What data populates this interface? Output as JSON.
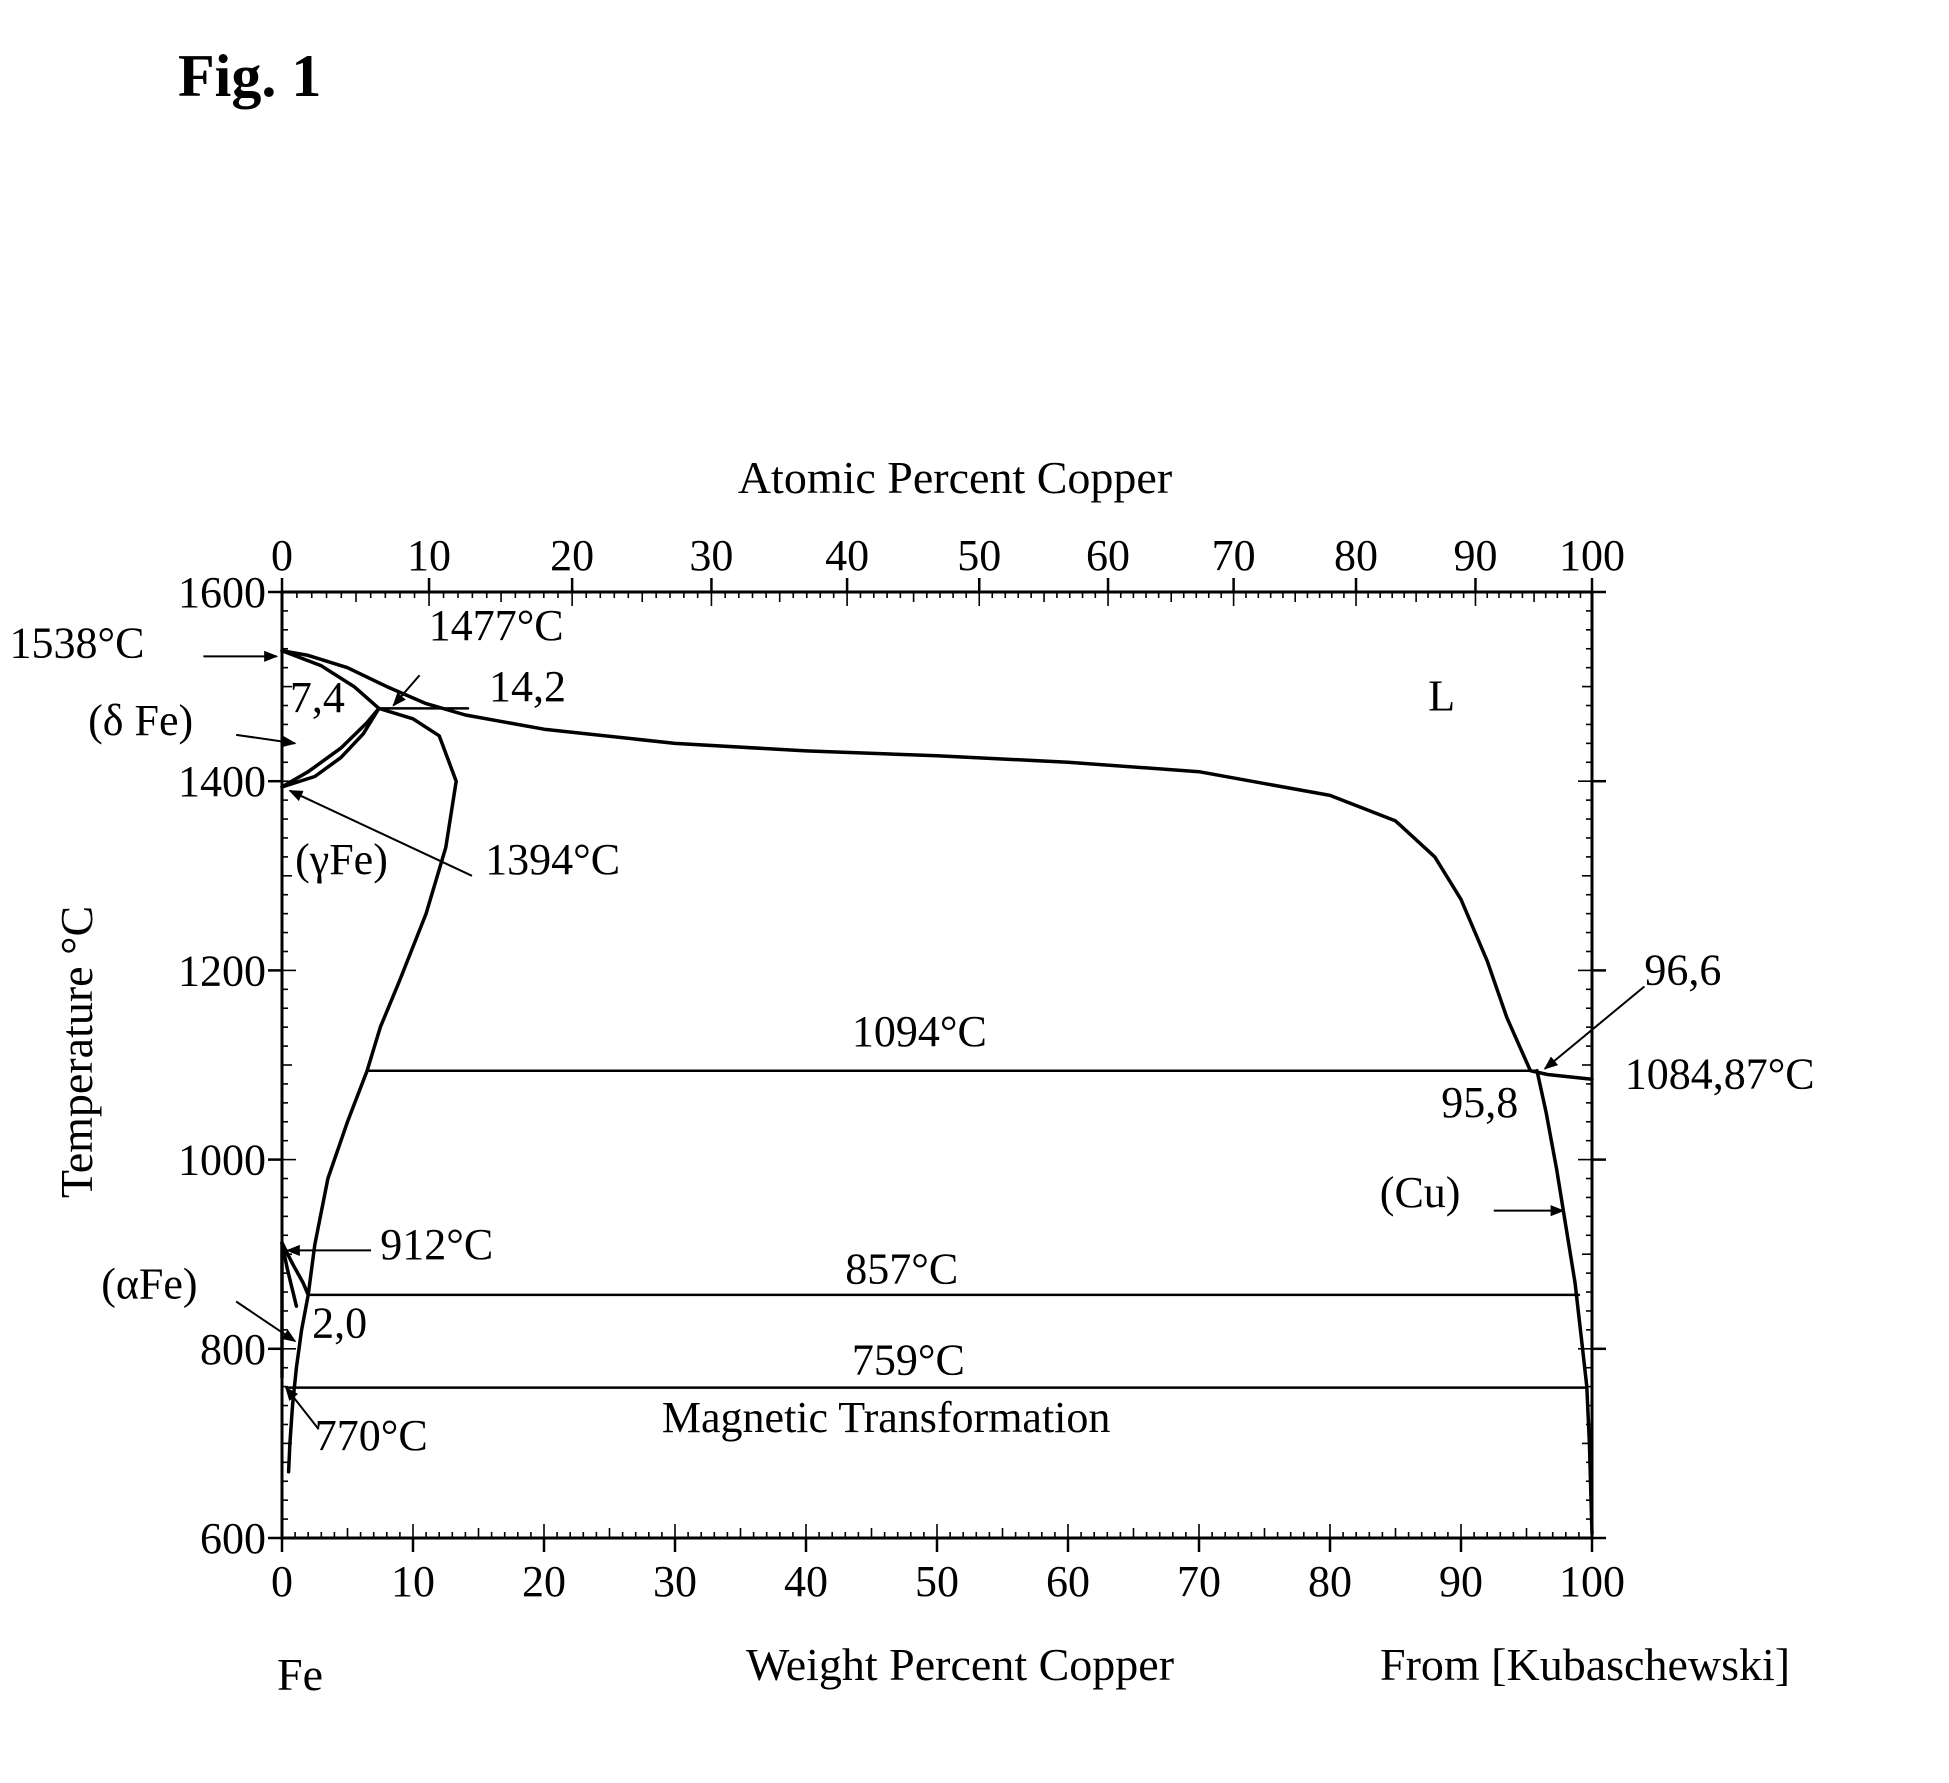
{
  "figure": {
    "title": "Fig. 1",
    "source": "From [Kubaschewski]",
    "element_label": "Fe"
  },
  "chart_data": {
    "type": "line",
    "title": "Fig. 1",
    "xlabel": "Weight Percent Copper",
    "x2label": "Atomic Percent Copper",
    "ylabel": "Temperature °C",
    "xlim": [
      0,
      100
    ],
    "ylim": [
      600,
      1600
    ],
    "x_ticks": [
      "0",
      "10",
      "20",
      "30",
      "40",
      "50",
      "60",
      "70",
      "80",
      "90",
      "100"
    ],
    "x2_ticks": [
      "0",
      "10",
      "20",
      "30",
      "40",
      "50",
      "60",
      "70",
      "80",
      "90",
      "100"
    ],
    "y_ticks": [
      "600",
      "800",
      "1000",
      "1200",
      "1400",
      "1600"
    ],
    "grid": false,
    "series": [
      {
        "id": "liquidus",
        "points": [
          [
            0,
            1538
          ],
          [
            2,
            1533
          ],
          [
            5,
            1520
          ],
          [
            8,
            1500
          ],
          [
            11,
            1482
          ],
          [
            14,
            1470
          ],
          [
            20,
            1455
          ],
          [
            30,
            1440
          ],
          [
            40,
            1432
          ],
          [
            50,
            1427
          ],
          [
            60,
            1420
          ],
          [
            70,
            1410
          ],
          [
            80,
            1385
          ],
          [
            85,
            1358
          ],
          [
            88,
            1320
          ],
          [
            90,
            1275
          ],
          [
            92,
            1210
          ],
          [
            93.5,
            1150
          ],
          [
            95.3,
            1094
          ],
          [
            96.6,
            1090
          ],
          [
            100,
            1084.87
          ]
        ]
      },
      {
        "id": "delta_solidus",
        "points": [
          [
            0,
            1538
          ],
          [
            3,
            1522
          ],
          [
            5.5,
            1500
          ],
          [
            7.4,
            1477
          ]
        ]
      },
      {
        "id": "delta_gamma_upper",
        "points": [
          [
            0,
            1394
          ],
          [
            2,
            1410
          ],
          [
            4.5,
            1435
          ],
          [
            6.5,
            1462
          ],
          [
            7.4,
            1477
          ]
        ]
      },
      {
        "id": "delta_gamma_lower",
        "points": [
          [
            0,
            1394
          ],
          [
            2.5,
            1405
          ],
          [
            4.5,
            1425
          ],
          [
            6.2,
            1450
          ],
          [
            7.4,
            1477
          ]
        ]
      },
      {
        "id": "peritectic_1477",
        "points": [
          [
            7.4,
            1477
          ],
          [
            14.2,
            1477
          ]
        ]
      },
      {
        "id": "gamma_solvus",
        "points": [
          [
            7.4,
            1477
          ],
          [
            10,
            1466
          ],
          [
            12,
            1448
          ],
          [
            13.3,
            1400
          ],
          [
            12.5,
            1330
          ],
          [
            11,
            1260
          ],
          [
            9,
            1190
          ],
          [
            7.5,
            1140
          ],
          [
            6.5,
            1094
          ],
          [
            5,
            1040
          ],
          [
            3.5,
            980
          ],
          [
            2.5,
            910
          ],
          [
            2,
            857
          ]
        ]
      },
      {
        "id": "eutectic_1094",
        "points": [
          [
            6.5,
            1094
          ],
          [
            95.8,
            1094
          ]
        ]
      },
      {
        "id": "cu_solvus",
        "points": [
          [
            95.8,
            1094
          ],
          [
            96.5,
            1050
          ],
          [
            97.3,
            990
          ],
          [
            98,
            930
          ],
          [
            98.7,
            870
          ],
          [
            99.2,
            810
          ],
          [
            99.6,
            760
          ],
          [
            99.8,
            700
          ],
          [
            100,
            605
          ]
        ]
      },
      {
        "id": "alpha_gamma_boundary",
        "points": [
          [
            0,
            912
          ],
          [
            0.8,
            890
          ],
          [
            1.6,
            870
          ],
          [
            2.0,
            857
          ]
        ]
      },
      {
        "id": "alpha_solvus",
        "points": [
          [
            2.0,
            857
          ],
          [
            1.5,
            820
          ],
          [
            1.1,
            780
          ],
          [
            0.8,
            740
          ],
          [
            0.6,
            700
          ],
          [
            0.5,
            670
          ]
        ]
      },
      {
        "id": "alpha_gamma_inner",
        "points": [
          [
            0,
            912
          ],
          [
            0.4,
            885
          ],
          [
            0.8,
            862
          ],
          [
            1.1,
            845
          ]
        ]
      },
      {
        "id": "eutectoid_857",
        "points": [
          [
            2.0,
            857
          ],
          [
            99.0,
            857
          ]
        ]
      },
      {
        "id": "magnetic_759",
        "points": [
          [
            0.5,
            759
          ],
          [
            99.6,
            759
          ]
        ]
      },
      {
        "id": "fe_axis_segment",
        "points": [
          [
            0,
            912
          ],
          [
            0,
            770
          ]
        ]
      }
    ],
    "annotations": [
      {
        "id": "t1538",
        "text": "1538°C",
        "x": -20.8,
        "y": 1531
      },
      {
        "id": "t1477",
        "text": "1477°C",
        "x": 11.2,
        "y": 1549
      },
      {
        "id": "c74",
        "text": "7,4",
        "x": 0.6,
        "y": 1473
      },
      {
        "id": "c142",
        "text": "14,2",
        "x": 15.8,
        "y": 1485
      },
      {
        "id": "delta_fe",
        "text": "(δ Fe)",
        "x": -14.8,
        "y": 1449
      },
      {
        "id": "L",
        "text": "L",
        "x": 87.5,
        "y": 1475
      },
      {
        "id": "gamma_fe",
        "text": "(γFe)",
        "x": 1.0,
        "y": 1302
      },
      {
        "id": "t1394",
        "text": "1394°C",
        "x": 15.5,
        "y": 1302
      },
      {
        "id": "c966",
        "text": "96,6",
        "x": 104,
        "y": 1185
      },
      {
        "id": "t1094",
        "text": "1094°C",
        "x": 43.5,
        "y": 1120
      },
      {
        "id": "t108487",
        "text": "1084,87°C",
        "x": 102.5,
        "y": 1075
      },
      {
        "id": "c958",
        "text": "95,8",
        "x": 88.5,
        "y": 1045
      },
      {
        "id": "cu",
        "text": "(Cu)",
        "x": 83.8,
        "y": 950
      },
      {
        "id": "t912",
        "text": "912°C",
        "x": 7.5,
        "y": 895
      },
      {
        "id": "alpha_fe",
        "text": "(αFe)",
        "x": -13.8,
        "y": 853
      },
      {
        "id": "t857",
        "text": "857°C",
        "x": 43.0,
        "y": 869
      },
      {
        "id": "c20",
        "text": "2,0",
        "x": 2.3,
        "y": 812
      },
      {
        "id": "t759",
        "text": "759°C",
        "x": 43.5,
        "y": 773
      },
      {
        "id": "t770",
        "text": "770°C",
        "x": 2.5,
        "y": 693
      },
      {
        "id": "magnetic",
        "text": "Magnetic Transformation",
        "x": 29.0,
        "y": 712
      }
    ]
  }
}
